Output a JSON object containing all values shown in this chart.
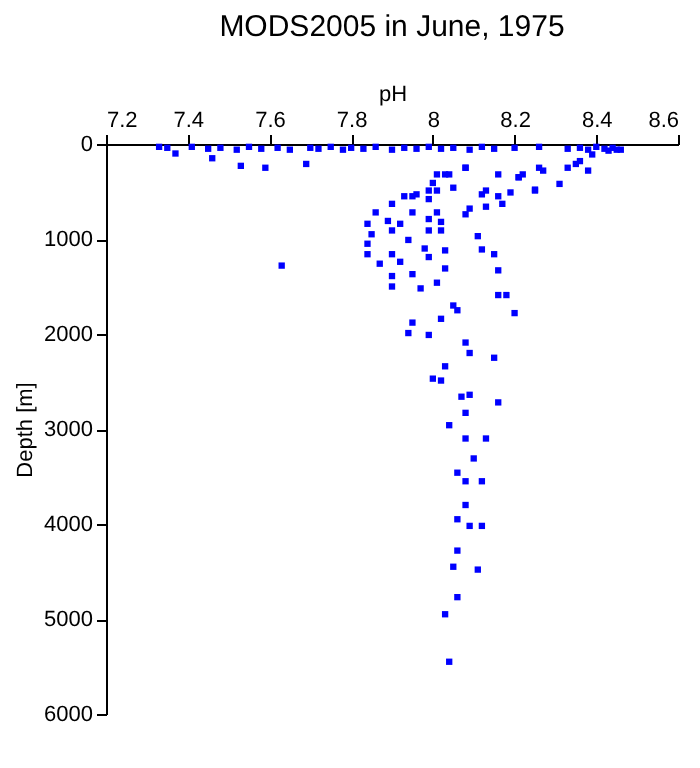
{
  "chart_data": {
    "type": "scatter",
    "title": "MODS2005 in June, 1975",
    "xlabel": "pH",
    "ylabel": "Depth [m]",
    "marker": "square",
    "xlim": [
      7.2,
      8.6
    ],
    "xticks": [
      7.2,
      7.4,
      7.6,
      7.8,
      8,
      8.2,
      8.4,
      8.6
    ],
    "ylim": [
      6000,
      0
    ],
    "yticks": [
      0,
      1000,
      2000,
      3000,
      4000,
      5000,
      6000
    ],
    "series": [
      {
        "color": "#0000ff",
        "x": [
          7.33,
          7.35,
          7.41,
          7.45,
          7.48,
          7.52,
          7.55,
          7.58,
          7.62,
          7.65,
          7.7,
          7.72,
          7.75,
          7.78,
          7.8,
          7.83,
          7.86,
          7.9,
          7.93,
          7.96,
          7.99,
          8.02,
          8.05,
          8.09,
          8.12,
          8.15,
          8.2,
          8.26,
          8.33,
          8.36,
          8.38,
          8.4,
          8.42,
          8.44,
          8.46,
          7.37,
          7.46,
          7.53,
          7.59,
          7.69,
          7.93,
          7.86,
          7.9,
          7.92,
          7.84,
          7.85,
          7.9,
          7.94,
          7.84,
          7.84,
          7.9,
          7.87,
          7.92,
          7.9,
          7.9,
          7.95,
          7.97,
          7.63,
          7.99,
          7.99,
          7.98,
          8.03,
          8.02,
          8.01,
          8.03,
          8.05,
          8.06,
          8.02,
          7.95,
          7.94,
          7.99,
          8.08,
          8.09,
          8.15,
          8.03,
          8,
          8.02,
          8.07,
          8.09,
          8.16,
          8.08,
          8.04,
          8.08,
          8.13,
          8.1,
          8.16,
          8.18,
          8.2,
          8.12,
          8.15,
          8.11,
          8.16,
          8.01,
          8.04,
          8.08,
          8,
          7.99,
          7.99,
          8.01,
          7.99,
          8.05,
          8.09,
          8.08,
          8.12,
          8.13,
          8.16,
          8.17,
          8.19,
          8.21,
          8.22,
          8.25,
          8.27,
          8.31,
          8.02,
          7.95,
          7.89,
          7.96,
          8.33,
          8.36,
          8.39,
          8.43,
          8.45,
          8.38,
          8.35,
          8.26,
          8.25,
          8.21,
          8.16,
          8.13,
          8.08,
          8.03,
          8.01,
          7.95,
          8.06,
          8.08,
          8.12,
          8.08,
          8.06,
          8.09,
          8.12,
          8.06,
          8.05,
          8.11,
          8.06,
          8.03,
          8.04
        ],
        "values": [
          30,
          40,
          30,
          50,
          40,
          60,
          30,
          50,
          40,
          60,
          40,
          50,
          30,
          60,
          40,
          50,
          30,
          60,
          40,
          50,
          30,
          50,
          40,
          60,
          30,
          50,
          40,
          30,
          50,
          40,
          60,
          30,
          50,
          40,
          60,
          100,
          150,
          230,
          250,
          210,
          550,
          720,
          630,
          840,
          840,
          950,
          910,
          1010,
          1050,
          1160,
          1160,
          1260,
          1240,
          1390,
          1500,
          1370,
          1520,
          1280,
          910,
          1190,
          1100,
          1120,
          910,
          1460,
          1310,
          1700,
          1750,
          1840,
          1880,
          1990,
          2010,
          2090,
          2200,
          2250,
          2340,
          2470,
          2490,
          2660,
          2640,
          2720,
          2830,
          2960,
          3100,
          3100,
          3310,
          1590,
          1590,
          1780,
          1110,
          1160,
          970,
          1330,
          320,
          320,
          250,
          410,
          490,
          580,
          720,
          790,
          460,
          680,
          740,
          530,
          660,
          550,
          630,
          510,
          350,
          320,
          480,
          280,
          420,
          820,
          720,
          810,
          530,
          250,
          180,
          110,
          70,
          60,
          280,
          210,
          250,
          490,
          350,
          320,
          490,
          250,
          320,
          490,
          550,
          3460,
          3550,
          3550,
          3800,
          3950,
          4020,
          4020,
          4280,
          4450,
          4480,
          4770,
          4950,
          5450
        ]
      }
    ]
  }
}
